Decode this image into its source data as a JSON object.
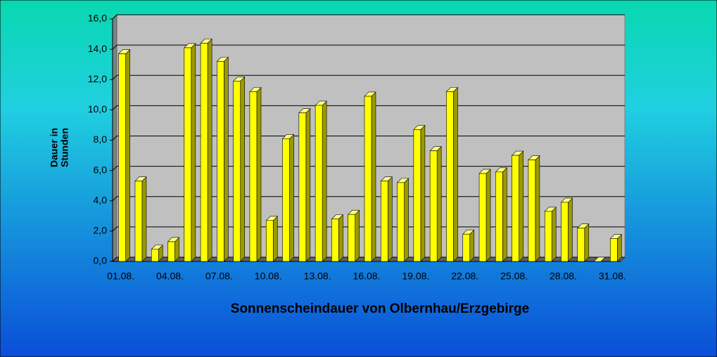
{
  "chart_data": {
    "type": "bar3d",
    "title": "Sonnenscheindauer von Olbernhau/Erzgebirge",
    "ylabel": [
      "Dauer in",
      "Stunden"
    ],
    "categories": [
      "01.08.",
      null,
      null,
      "04.08.",
      null,
      null,
      "07.08.",
      null,
      null,
      "10.08.",
      null,
      null,
      "13.08.",
      null,
      null,
      "16.08.",
      null,
      null,
      "19.08.",
      null,
      null,
      "22.08.",
      null,
      null,
      "25.08.",
      null,
      null,
      "28.08.",
      null,
      null,
      "31.08."
    ],
    "values": [
      13.7,
      5.3,
      0.8,
      1.3,
      14.1,
      14.4,
      13.2,
      11.9,
      11.2,
      2.7,
      8.1,
      9.8,
      10.3,
      2.8,
      3.1,
      10.9,
      5.3,
      5.2,
      8.7,
      7.3,
      11.2,
      1.8,
      5.8,
      5.9,
      7.0,
      6.7,
      3.3,
      3.9,
      2.2,
      0,
      1.5
    ],
    "color": "#ffff00",
    "ylim": [
      0,
      16
    ],
    "yticks": [
      {
        "value": 0,
        "label": "0,0"
      },
      {
        "value": 2,
        "label": "2,0"
      },
      {
        "value": 4,
        "label": "4,0"
      },
      {
        "value": 6,
        "label": "6,0"
      },
      {
        "value": 8,
        "label": "8,0"
      },
      {
        "value": 10,
        "label": "10,0"
      },
      {
        "value": 12,
        "label": "12,0"
      },
      {
        "value": 14,
        "label": "14,0"
      },
      {
        "value": 16,
        "label": "16,0"
      }
    ],
    "grid": true
  }
}
